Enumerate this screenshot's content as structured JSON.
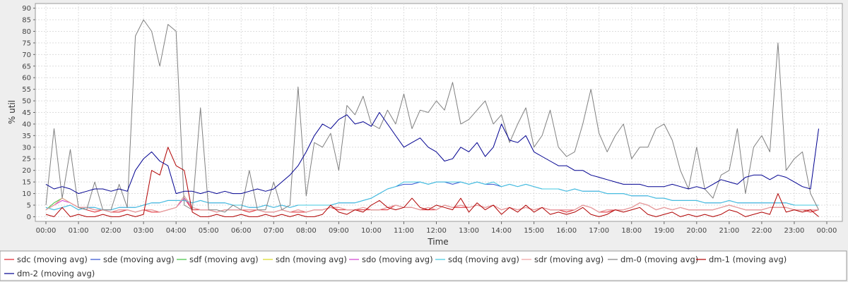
{
  "chart_data": {
    "type": "line",
    "title": "",
    "xlabel": "Time",
    "ylabel": "% util",
    "ylim": [
      -2,
      92
    ],
    "yticks": [
      0,
      5,
      10,
      15,
      20,
      25,
      30,
      35,
      40,
      45,
      50,
      55,
      60,
      65,
      70,
      75,
      80,
      85,
      90
    ],
    "xlim": [
      "00:00",
      "24:00"
    ],
    "x_tick_labels": [
      "00:00",
      "01:00",
      "02:00",
      "03:00",
      "04:00",
      "05:00",
      "06:00",
      "07:00",
      "08:00",
      "09:00",
      "10:00",
      "11:00",
      "12:00",
      "13:00",
      "14:00",
      "15:00",
      "16:00",
      "17:00",
      "18:00",
      "19:00",
      "20:00",
      "21:00",
      "22:00",
      "23:00",
      "00:00"
    ],
    "grid": true,
    "legend_position": "bottom",
    "sample_interval_minutes": 15,
    "series": [
      {
        "name": "sdc (moving avg)",
        "color": "#e0202a",
        "values": [
          3,
          5,
          8,
          6,
          4,
          3,
          2,
          3,
          2,
          2,
          3,
          2,
          3,
          2,
          2,
          3,
          4,
          8,
          3,
          3,
          3,
          2,
          3,
          3,
          3,
          2,
          3,
          2,
          2,
          3,
          2,
          2,
          2,
          3,
          3,
          4,
          3,
          3,
          3,
          3,
          3,
          3,
          3,
          5,
          4,
          4,
          3,
          3,
          3,
          5,
          4,
          4,
          4,
          5,
          4,
          5,
          3,
          4,
          3,
          4,
          3,
          4,
          3,
          3,
          2,
          3,
          5,
          4,
          2,
          2,
          3,
          3,
          4,
          6,
          5,
          3,
          4,
          3,
          4,
          3,
          3,
          3,
          3,
          4,
          5,
          4,
          3,
          3,
          3,
          4,
          4,
          4,
          3,
          3,
          2,
          3
        ]
      },
      {
        "name": "sde (moving avg)",
        "color": "#3050d0",
        "values": [
          4,
          3,
          4,
          5,
          3,
          4,
          4,
          3,
          3,
          4,
          4,
          4,
          5,
          6,
          6,
          7,
          7,
          7,
          6,
          7,
          6,
          6,
          6,
          5,
          5,
          4,
          4,
          5,
          4,
          5,
          4,
          5,
          5,
          5,
          5,
          5,
          6,
          6,
          6,
          7,
          8,
          10,
          12,
          13,
          14,
          14,
          15,
          14,
          15,
          15,
          14,
          15,
          14,
          15,
          14,
          14,
          13,
          14,
          13,
          14,
          13,
          12,
          12,
          12,
          11,
          12,
          11,
          11,
          11,
          10,
          10,
          10,
          9,
          9,
          9,
          8,
          8,
          7,
          7,
          7,
          7,
          6,
          6,
          6,
          7,
          6,
          6,
          6,
          6,
          6,
          6,
          6,
          5,
          5,
          5,
          5
        ]
      },
      {
        "name": "sdf (moving avg)",
        "color": "#40c040",
        "values": [
          3,
          6,
          8,
          6,
          4,
          4,
          3,
          3,
          2,
          3,
          3,
          2,
          3,
          3,
          2,
          3,
          4,
          9,
          4,
          3,
          3,
          2,
          3,
          3,
          3,
          3,
          3,
          2,
          2,
          3,
          2,
          3,
          2,
          3,
          3,
          4,
          4,
          3,
          3,
          4,
          3,
          3,
          4,
          5,
          4,
          4,
          3,
          4,
          3,
          5,
          4,
          5,
          4,
          5,
          4,
          5,
          3,
          4,
          3,
          4,
          3,
          4,
          3,
          3,
          3,
          3,
          5,
          4,
          2,
          3,
          3,
          3,
          4,
          6,
          5,
          3,
          4,
          3,
          4,
          3,
          3,
          3,
          3,
          4,
          5,
          4,
          3,
          3,
          3,
          4,
          4,
          4,
          3,
          3,
          3,
          3
        ]
      },
      {
        "name": "sdn (moving avg)",
        "color": "#d8d820",
        "values": [
          3,
          5,
          8,
          6,
          4,
          4,
          3,
          3,
          2,
          3,
          3,
          2,
          3,
          3,
          2,
          3,
          4,
          8,
          4,
          3,
          3,
          2,
          3,
          3,
          3,
          3,
          3,
          2,
          2,
          3,
          2,
          3,
          2,
          3,
          3,
          4,
          4,
          3,
          3,
          4,
          3,
          3,
          4,
          5,
          4,
          4,
          3,
          4,
          3,
          5,
          4,
          5,
          4,
          5,
          4,
          5,
          3,
          4,
          3,
          4,
          3,
          4,
          3,
          3,
          3,
          3,
          5,
          4,
          2,
          3,
          3,
          3,
          4,
          6,
          5,
          3,
          4,
          3,
          4,
          3,
          3,
          3,
          3,
          4,
          5,
          4,
          3,
          3,
          3,
          4,
          4,
          4,
          3,
          3,
          3,
          3
        ]
      },
      {
        "name": "sdo (moving avg)",
        "color": "#d040d0",
        "values": [
          3,
          5,
          7,
          6,
          4,
          4,
          3,
          3,
          2,
          3,
          3,
          2,
          3,
          3,
          2,
          3,
          4,
          8,
          4,
          3,
          3,
          2,
          3,
          3,
          3,
          3,
          3,
          2,
          2,
          3,
          2,
          3,
          2,
          3,
          3,
          4,
          4,
          3,
          3,
          4,
          3,
          3,
          4,
          5,
          4,
          4,
          3,
          4,
          3,
          5,
          4,
          5,
          4,
          5,
          4,
          5,
          3,
          4,
          3,
          4,
          3,
          4,
          3,
          3,
          3,
          3,
          5,
          4,
          2,
          3,
          3,
          3,
          4,
          6,
          5,
          3,
          4,
          3,
          4,
          3,
          3,
          3,
          3,
          4,
          5,
          4,
          3,
          3,
          3,
          4,
          4,
          4,
          3,
          3,
          3,
          3
        ]
      },
      {
        "name": "sdq (moving avg)",
        "color": "#40c8e0",
        "values": [
          4,
          3,
          4,
          5,
          3,
          4,
          4,
          3,
          3,
          4,
          4,
          4,
          5,
          6,
          6,
          7,
          7,
          7,
          6,
          7,
          6,
          6,
          6,
          5,
          5,
          4,
          4,
          5,
          4,
          5,
          4,
          5,
          5,
          5,
          5,
          5,
          6,
          6,
          6,
          7,
          8,
          10,
          12,
          13,
          15,
          15,
          15,
          14,
          15,
          15,
          15,
          15,
          14,
          15,
          14,
          15,
          13,
          14,
          13,
          14,
          13,
          12,
          12,
          12,
          11,
          12,
          11,
          11,
          11,
          10,
          10,
          10,
          9,
          9,
          9,
          8,
          8,
          7,
          7,
          7,
          7,
          6,
          6,
          6,
          7,
          6,
          6,
          6,
          6,
          6,
          6,
          6,
          5,
          5,
          5,
          5
        ]
      },
      {
        "name": "sdr (moving avg)",
        "color": "#f0a0a0",
        "values": [
          3,
          5,
          8,
          6,
          4,
          4,
          3,
          3,
          2,
          3,
          3,
          2,
          3,
          3,
          2,
          3,
          4,
          9,
          4,
          3,
          3,
          2,
          3,
          3,
          3,
          3,
          3,
          2,
          2,
          3,
          2,
          3,
          2,
          3,
          3,
          4,
          4,
          3,
          3,
          4,
          3,
          3,
          4,
          5,
          4,
          4,
          3,
          4,
          3,
          5,
          4,
          5,
          4,
          5,
          4,
          5,
          3,
          4,
          3,
          4,
          3,
          4,
          3,
          3,
          3,
          3,
          5,
          4,
          2,
          3,
          3,
          3,
          4,
          6,
          5,
          3,
          4,
          3,
          4,
          3,
          3,
          3,
          3,
          4,
          5,
          4,
          3,
          3,
          3,
          4,
          4,
          4,
          3,
          3,
          3,
          3
        ]
      },
      {
        "name": "dm-0 (moving avg)",
        "color": "#808080",
        "values": [
          5,
          38,
          8,
          29,
          4,
          3,
          15,
          3,
          3,
          14,
          4,
          78,
          85,
          80,
          65,
          83,
          80,
          5,
          3,
          47,
          3,
          3,
          2,
          5,
          3,
          20,
          3,
          3,
          15,
          3,
          5,
          56,
          9,
          32,
          30,
          36,
          20,
          48,
          44,
          52,
          40,
          38,
          46,
          40,
          53,
          38,
          46,
          45,
          50,
          46,
          58,
          40,
          42,
          46,
          50,
          40,
          44,
          32,
          40,
          47,
          30,
          35,
          46,
          30,
          26,
          28,
          40,
          55,
          36,
          28,
          35,
          40,
          25,
          30,
          30,
          38,
          40,
          33,
          20,
          12,
          30,
          12,
          8,
          18,
          20,
          38,
          10,
          30,
          35,
          28,
          75,
          20,
          25,
          28,
          10,
          3
        ]
      },
      {
        "name": "dm-1 (moving avg)",
        "color": "#b00000",
        "values": [
          1,
          0,
          4,
          0,
          1,
          0,
          0,
          1,
          0,
          0,
          1,
          0,
          1,
          20,
          18,
          30,
          22,
          20,
          2,
          0,
          0,
          1,
          0,
          0,
          1,
          0,
          0,
          1,
          0,
          1,
          0,
          1,
          0,
          0,
          1,
          5,
          2,
          1,
          3,
          2,
          5,
          7,
          4,
          3,
          4,
          8,
          4,
          3,
          5,
          4,
          3,
          8,
          2,
          6,
          3,
          5,
          1,
          4,
          2,
          5,
          2,
          4,
          1,
          2,
          1,
          2,
          4,
          1,
          0,
          1,
          3,
          2,
          3,
          4,
          1,
          0,
          1,
          2,
          0,
          1,
          0,
          1,
          0,
          1,
          3,
          2,
          0,
          1,
          2,
          1,
          10,
          2,
          3,
          2,
          3,
          0
        ]
      },
      {
        "name": "dm-2 (moving avg)",
        "color": "#000090",
        "values": [
          14,
          12,
          13,
          12,
          10,
          11,
          12,
          12,
          11,
          12,
          11,
          20,
          25,
          28,
          24,
          22,
          10,
          11,
          11,
          10,
          11,
          10,
          11,
          10,
          10,
          11,
          12,
          11,
          12,
          15,
          18,
          22,
          28,
          35,
          40,
          38,
          42,
          44,
          40,
          41,
          39,
          45,
          40,
          35,
          30,
          32,
          34,
          30,
          28,
          24,
          25,
          30,
          28,
          32,
          26,
          30,
          40,
          33,
          32,
          35,
          28,
          26,
          24,
          22,
          22,
          20,
          20,
          18,
          17,
          16,
          15,
          14,
          14,
          14,
          13,
          13,
          13,
          14,
          13,
          12,
          13,
          12,
          14,
          16,
          15,
          14,
          17,
          18,
          18,
          16,
          18,
          17,
          15,
          13,
          12,
          38
        ]
      }
    ]
  }
}
